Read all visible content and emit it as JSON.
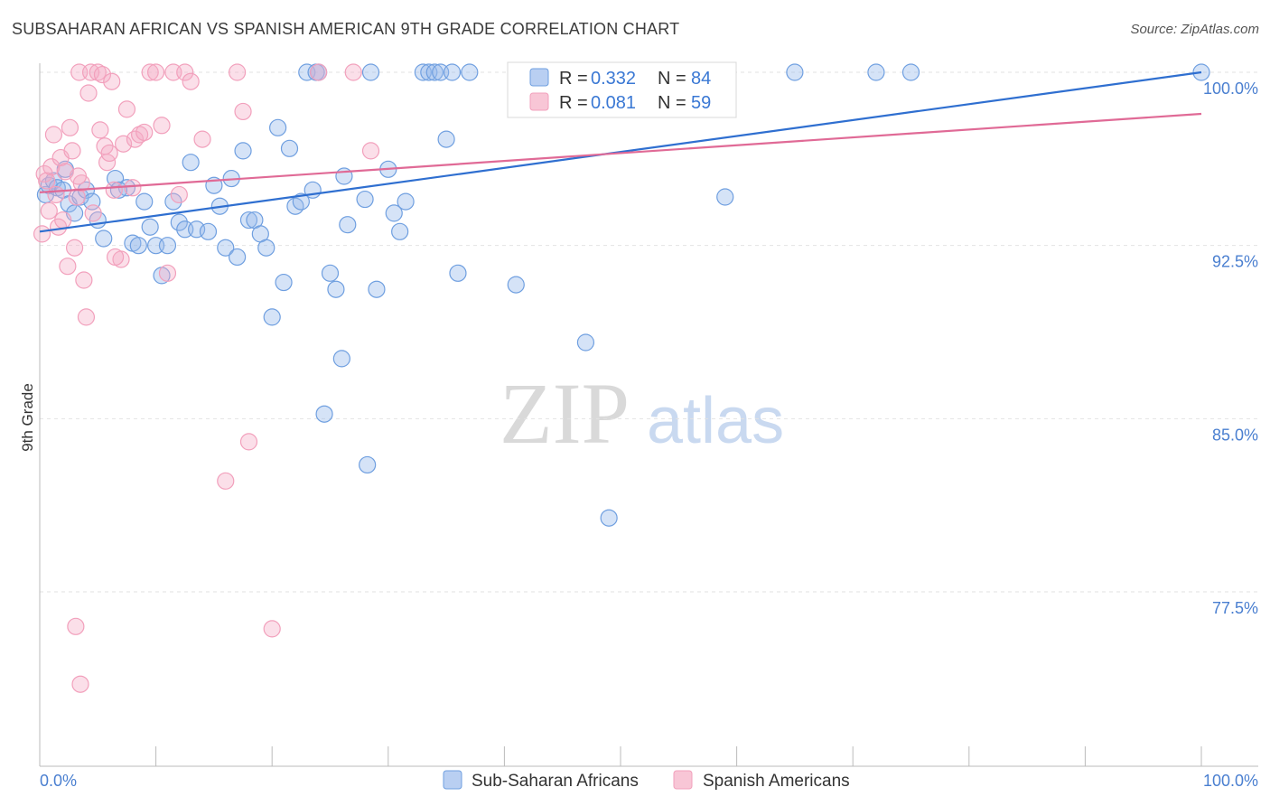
{
  "title": "SUBSAHARAN AFRICAN VS SPANISH AMERICAN 9TH GRADE CORRELATION CHART",
  "source": "Source: ZipAtlas.com",
  "watermark": {
    "zip": "ZIP",
    "atlas": "atlas"
  },
  "legend_top": {
    "rows": [
      {
        "r_label": "R = ",
        "r_value": "0.332",
        "n_label": "N = ",
        "n_value": "84"
      },
      {
        "r_label": "R = ",
        "r_value": "0.081",
        "n_label": "N = ",
        "n_value": "59"
      }
    ]
  },
  "chart_data": {
    "type": "scatter",
    "title": "SUBSAHARAN AFRICAN VS SPANISH AMERICAN 9TH GRADE CORRELATION CHART",
    "xlabel": "",
    "ylabel": "9th Grade",
    "xlim": [
      0,
      100
    ],
    "ylim": [
      70.5,
      100.5
    ],
    "y_ticks": [
      100.0,
      92.5,
      85.0,
      77.5
    ],
    "y_tick_labels": [
      "100.0%",
      "92.5%",
      "85.0%",
      "77.5%"
    ],
    "x_tick_labels": [
      "0.0%",
      "100.0%"
    ],
    "grid": true,
    "legend_placement": "bottom",
    "colors": {
      "blue": "#6f9fe0",
      "blue_line": "#2f6fd0",
      "pink": "#f2a0bc",
      "pink_line": "#e06a96"
    },
    "series": [
      {
        "name": "Sub-Saharan Africans",
        "color": "blue",
        "trend": {
          "x": [
            0,
            100
          ],
          "y": [
            93.1,
            100.0
          ]
        },
        "points": [
          [
            0.5,
            94.7
          ],
          [
            0.8,
            95.1
          ],
          [
            1.2,
            95.3
          ],
          [
            1.5,
            95.0
          ],
          [
            2.0,
            94.9
          ],
          [
            2.5,
            94.3
          ],
          [
            3.0,
            93.9
          ],
          [
            3.5,
            94.6
          ],
          [
            4.0,
            94.9
          ],
          [
            4.5,
            94.4
          ],
          [
            5.0,
            93.6
          ],
          [
            5.5,
            92.8
          ],
          [
            6.5,
            95.4
          ],
          [
            7.5,
            95.0
          ],
          [
            8.0,
            92.6
          ],
          [
            8.5,
            92.5
          ],
          [
            9.0,
            94.4
          ],
          [
            9.5,
            93.3
          ],
          [
            10.0,
            92.5
          ],
          [
            10.5,
            91.2
          ],
          [
            11.0,
            92.5
          ],
          [
            11.5,
            94.4
          ],
          [
            12.0,
            93.5
          ],
          [
            12.5,
            93.2
          ],
          [
            13.0,
            96.1
          ],
          [
            13.5,
            93.2
          ],
          [
            14.5,
            93.1
          ],
          [
            15.0,
            95.1
          ],
          [
            15.5,
            94.2
          ],
          [
            16.0,
            92.4
          ],
          [
            16.5,
            95.4
          ],
          [
            17.0,
            92.0
          ],
          [
            17.5,
            96.6
          ],
          [
            18.0,
            93.6
          ],
          [
            18.5,
            93.6
          ],
          [
            19.0,
            93.0
          ],
          [
            19.5,
            92.4
          ],
          [
            20.0,
            89.4
          ],
          [
            20.5,
            97.6
          ],
          [
            21.0,
            90.9
          ],
          [
            21.5,
            96.7
          ],
          [
            22.0,
            94.2
          ],
          [
            22.5,
            94.4
          ],
          [
            23.0,
            100.0
          ],
          [
            23.5,
            94.9
          ],
          [
            23.8,
            100.0
          ],
          [
            24.0,
            100.0
          ],
          [
            24.5,
            85.2
          ],
          [
            25.0,
            91.3
          ],
          [
            25.5,
            90.6
          ],
          [
            26.0,
            87.6
          ],
          [
            26.2,
            95.5
          ],
          [
            26.5,
            93.4
          ],
          [
            28.0,
            94.5
          ],
          [
            28.2,
            83.0
          ],
          [
            28.5,
            100.0
          ],
          [
            29.0,
            90.6
          ],
          [
            30.0,
            95.8
          ],
          [
            30.5,
            93.9
          ],
          [
            31.0,
            93.1
          ],
          [
            31.5,
            94.4
          ],
          [
            33.0,
            100.0
          ],
          [
            33.5,
            100.0
          ],
          [
            34.0,
            100.0
          ],
          [
            34.5,
            100.0
          ],
          [
            35.0,
            97.1
          ],
          [
            35.5,
            100.0
          ],
          [
            36.0,
            91.3
          ],
          [
            37.0,
            100.0
          ],
          [
            41.0,
            90.8
          ],
          [
            42.0,
            100.0
          ],
          [
            42.5,
            99.2
          ],
          [
            47.0,
            88.3
          ],
          [
            49.0,
            80.7
          ],
          [
            50.0,
            100.0
          ],
          [
            52.0,
            100.0
          ],
          [
            54.0,
            99.5
          ],
          [
            59.0,
            94.6
          ],
          [
            65.0,
            100.0
          ],
          [
            72.0,
            100.0
          ],
          [
            75.0,
            100.0
          ],
          [
            100.0,
            100.0
          ],
          [
            2.2,
            95.8
          ],
          [
            6.8,
            94.9
          ]
        ]
      },
      {
        "name": "Spanish Americans",
        "color": "pink",
        "trend": {
          "x": [
            0,
            100
          ],
          "y": [
            94.8,
            98.2
          ]
        },
        "points": [
          [
            0.2,
            93.0
          ],
          [
            0.4,
            95.6
          ],
          [
            0.6,
            95.3
          ],
          [
            0.8,
            94.0
          ],
          [
            1.0,
            95.9
          ],
          [
            1.2,
            97.3
          ],
          [
            1.4,
            94.7
          ],
          [
            1.6,
            93.3
          ],
          [
            1.8,
            96.3
          ],
          [
            2.0,
            93.6
          ],
          [
            2.2,
            95.7
          ],
          [
            2.4,
            91.6
          ],
          [
            2.6,
            97.6
          ],
          [
            2.8,
            96.6
          ],
          [
            3.0,
            92.4
          ],
          [
            3.2,
            94.6
          ],
          [
            3.4,
            100.0
          ],
          [
            3.6,
            95.2
          ],
          [
            3.8,
            91.0
          ],
          [
            4.0,
            89.4
          ],
          [
            4.2,
            99.1
          ],
          [
            4.4,
            100.0
          ],
          [
            4.6,
            93.9
          ],
          [
            5.0,
            100.0
          ],
          [
            5.2,
            97.5
          ],
          [
            5.4,
            99.9
          ],
          [
            5.6,
            96.8
          ],
          [
            5.8,
            96.1
          ],
          [
            6.0,
            96.5
          ],
          [
            6.2,
            99.6
          ],
          [
            6.4,
            94.9
          ],
          [
            7.0,
            91.9
          ],
          [
            7.2,
            96.9
          ],
          [
            7.5,
            98.4
          ],
          [
            8.0,
            95.0
          ],
          [
            8.2,
            97.1
          ],
          [
            8.6,
            97.3
          ],
          [
            9.0,
            97.4
          ],
          [
            9.5,
            100.0
          ],
          [
            10.0,
            100.0
          ],
          [
            10.5,
            97.7
          ],
          [
            11.0,
            91.3
          ],
          [
            11.5,
            100.0
          ],
          [
            12.0,
            94.7
          ],
          [
            12.5,
            100.0
          ],
          [
            13.0,
            99.6
          ],
          [
            14.0,
            97.1
          ],
          [
            16.0,
            82.3
          ],
          [
            17.0,
            100.0
          ],
          [
            17.5,
            98.3
          ],
          [
            18.0,
            84.0
          ],
          [
            20.0,
            75.9
          ],
          [
            24.0,
            100.0
          ],
          [
            27.0,
            100.0
          ],
          [
            28.5,
            96.6
          ],
          [
            3.1,
            76.0
          ],
          [
            3.5,
            73.5
          ],
          [
            6.5,
            92.0
          ],
          [
            3.3,
            95.5
          ]
        ]
      }
    ]
  }
}
